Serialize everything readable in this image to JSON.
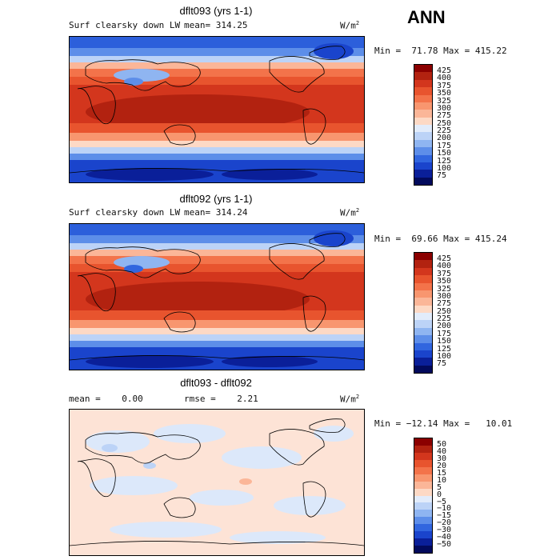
{
  "season": "ANN",
  "panels": [
    {
      "title": "dflt093 (yrs 1-1)",
      "field": "Surf clearsky down LW",
      "mean": "mean= 314.25",
      "units": "W/m",
      "stats": "Min =  71.78 Max = 415.22",
      "colorbar": [
        "425",
        "400",
        "375",
        "350",
        "325",
        "300",
        "275",
        "250",
        "225",
        "200",
        "175",
        "150",
        "125",
        "100",
        "75"
      ]
    },
    {
      "title": "dflt092 (yrs 1-1)",
      "field": "Surf clearsky down LW",
      "mean": "mean= 314.24",
      "units": "W/m",
      "stats": "Min =  69.66 Max = 415.24",
      "colorbar": [
        "425",
        "400",
        "375",
        "350",
        "325",
        "300",
        "275",
        "250",
        "225",
        "200",
        "175",
        "150",
        "125",
        "100",
        "75"
      ]
    },
    {
      "title": "dflt093 - dflt092",
      "mean": "mean =    0.00",
      "rmse": "rmse =    2.21",
      "units": "W/m",
      "stats": "Min = −12.14 Max =   10.01",
      "colorbar": [
        "50",
        "40",
        "30",
        "20",
        "15",
        "10",
        "5",
        "0",
        "−5",
        "−10",
        "−15",
        "−20",
        "−30",
        "−40",
        "−50"
      ]
    }
  ],
  "colors": {
    "scale": [
      "#8b0000",
      "#b22210",
      "#d3361d",
      "#e8542e",
      "#f3734a",
      "#f8966f",
      "#fbb698",
      "#fdd9c5",
      "#e2ecfb",
      "#bcd3f7",
      "#8fb5f1",
      "#5d8ee9",
      "#3166df",
      "#1a44cc",
      "#0a1f99",
      "#020a5c"
    ],
    "diff_neg": "#dce8fa",
    "diff_pos": "#fde3d6",
    "coast": "#000000"
  }
}
